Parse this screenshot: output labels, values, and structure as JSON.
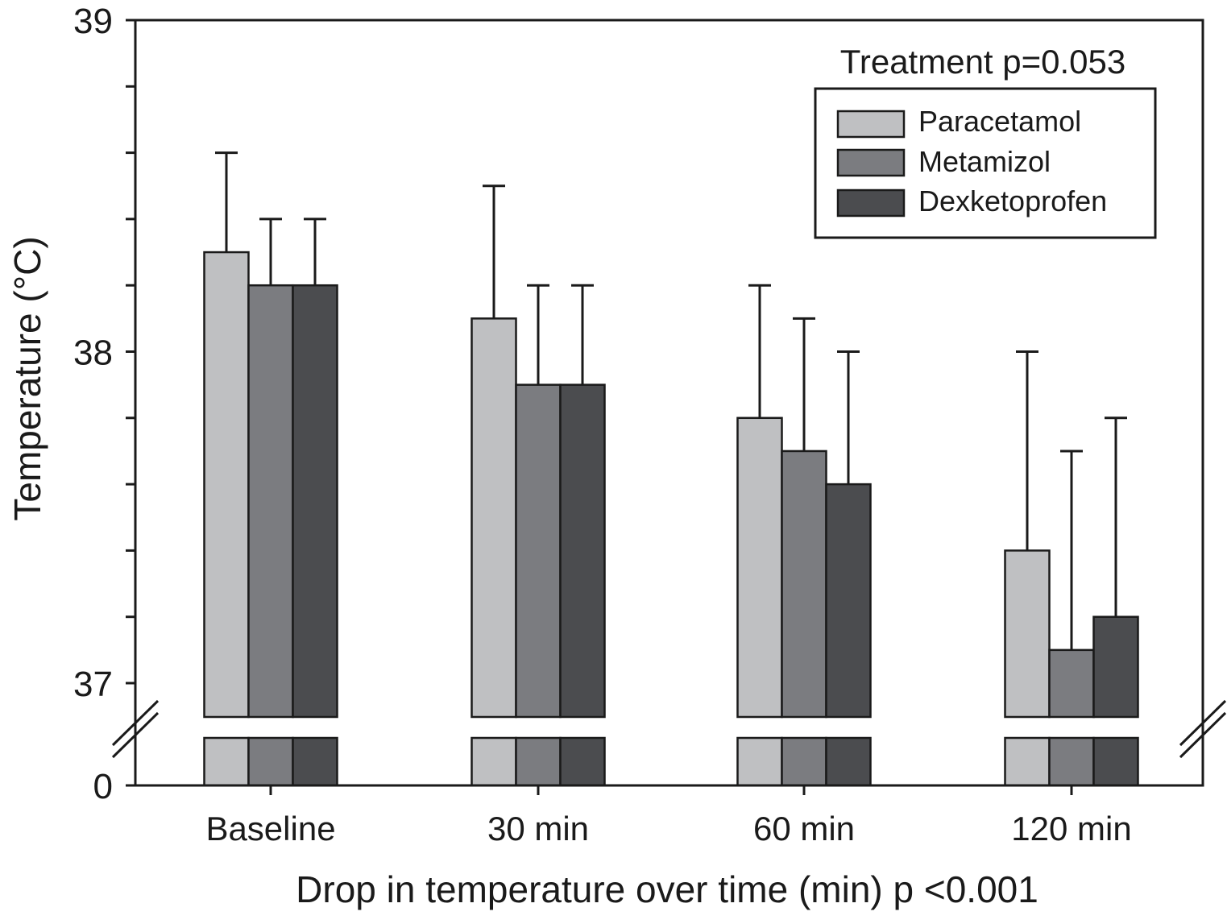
{
  "chart_data": {
    "type": "bar",
    "title": "",
    "xlabel": "Drop in temperature over time (min) p <0.001",
    "ylabel": "Temperature (°C)",
    "annotation": "Treatment p=0.053",
    "categories": [
      "Baseline",
      "30 min",
      "60 min",
      "120 min"
    ],
    "y_axis": {
      "broken": true,
      "lower_tick": 0,
      "range": [
        37,
        39
      ],
      "major_ticks": [
        37,
        38,
        39
      ],
      "minor_step": 0.2
    },
    "legend_position": "top-right",
    "grid": false,
    "series": [
      {
        "name": "Paracetamol",
        "color": "#bfc0c2",
        "values": [
          38.3,
          38.1,
          37.8,
          37.4
        ],
        "error_upper": [
          38.6,
          38.5,
          38.2,
          38.0
        ]
      },
      {
        "name": "Metamizol",
        "color": "#7b7c80",
        "values": [
          38.2,
          37.9,
          37.7,
          37.1
        ],
        "error_upper": [
          38.4,
          38.2,
          38.1,
          37.7
        ]
      },
      {
        "name": "Dexketoprofen",
        "color": "#4b4c4f",
        "values": [
          38.2,
          37.9,
          37.6,
          37.2
        ],
        "error_upper": [
          38.4,
          38.2,
          38.0,
          37.8
        ]
      }
    ]
  }
}
